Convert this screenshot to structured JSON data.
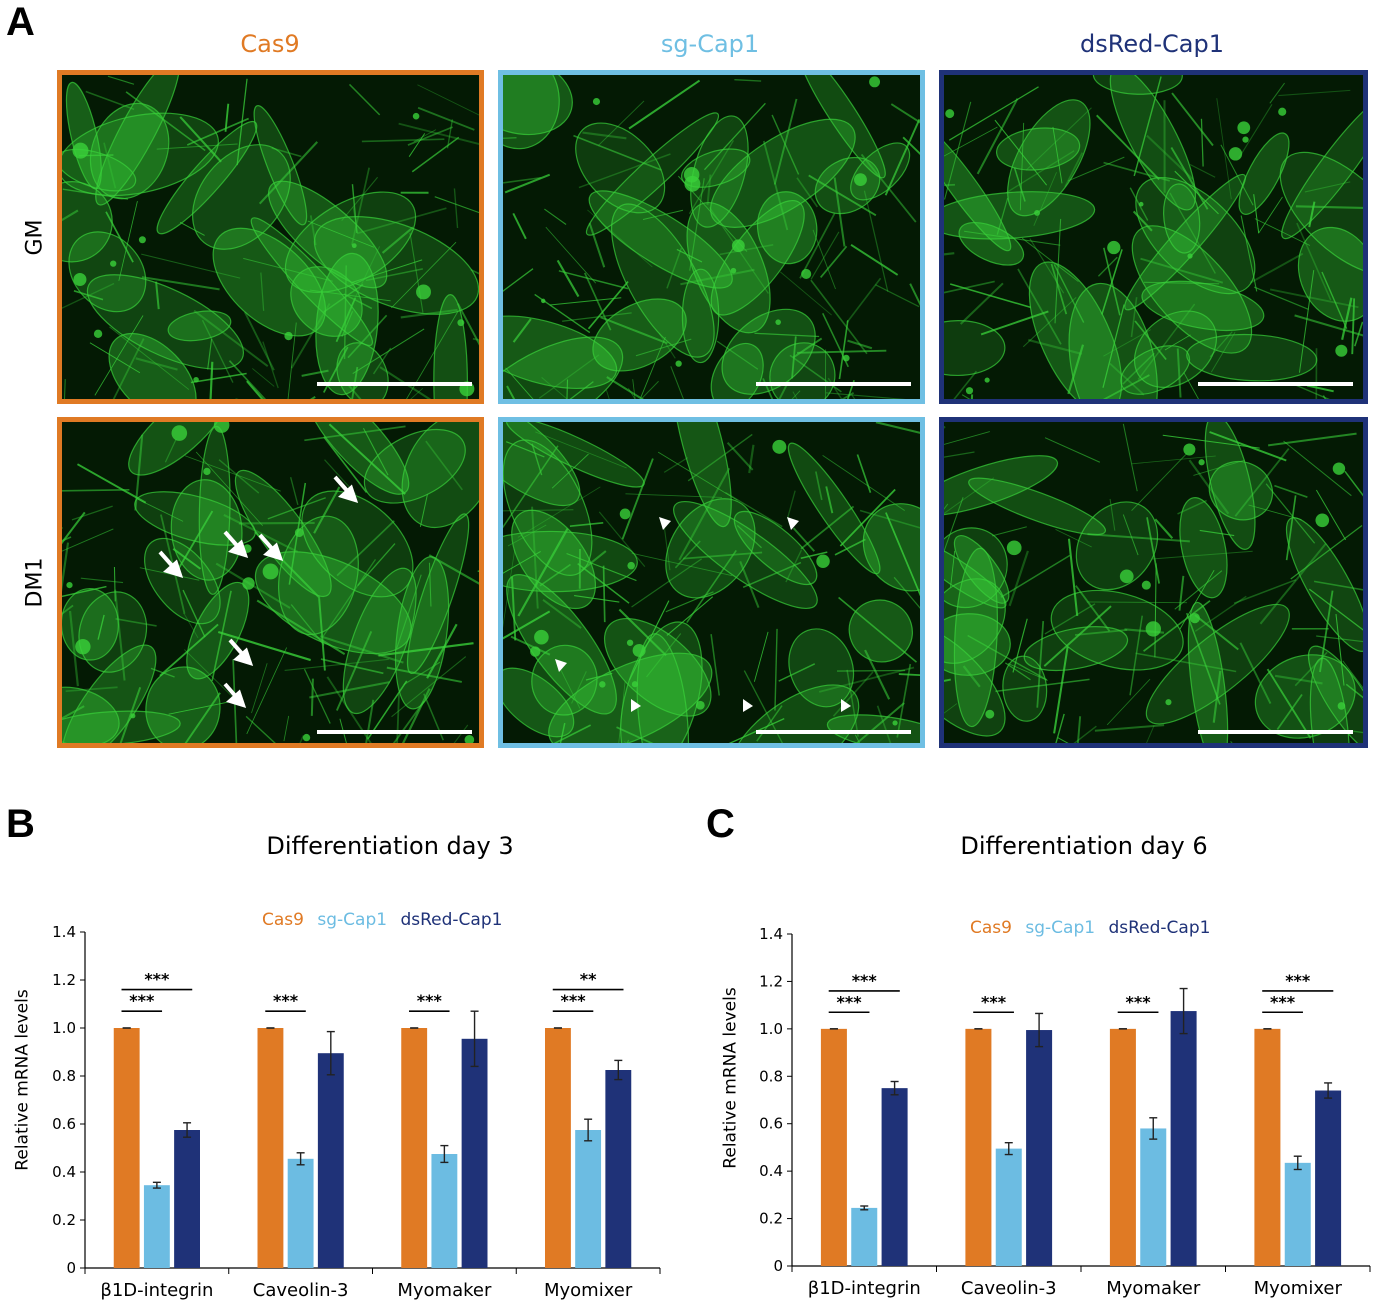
{
  "panels": {
    "a_label": "A",
    "b_label": "B",
    "c_label": "C"
  },
  "microscopy": {
    "columns": [
      {
        "label": "Cas9",
        "color": "#e07a24"
      },
      {
        "label": "sg-Cap1",
        "color": "#6fbfe3"
      },
      {
        "label": "dsRed-Cap1",
        "color": "#1f3278"
      }
    ],
    "rows": [
      "GM",
      "DM1"
    ],
    "fluorescence_color": "#39d13a"
  },
  "colors": {
    "cas9": "#e07a24",
    "sgcap1": "#6cbce2",
    "dsred": "#1f3278"
  },
  "chart_data": [
    {
      "type": "bar",
      "title": "Differentiation  day 3",
      "ylabel": "Relative  mRNA levels",
      "xlabel": "",
      "ylim": [
        0,
        1.4
      ],
      "yticks": [
        "0",
        "0.2",
        "0.4",
        "0.6",
        "0.8",
        "1.0",
        "1.2",
        "1.4"
      ],
      "categories": [
        "β1D-integrin",
        "Caveolin-3",
        "Myomaker",
        "Myomixer"
      ],
      "series": [
        {
          "name": "Cas9",
          "values": [
            1.0,
            1.0,
            1.0,
            1.0
          ],
          "errors": [
            0.0,
            0.0,
            0.0,
            0.0
          ]
        },
        {
          "name": "sg-Cap1",
          "values": [
            0.345,
            0.455,
            0.475,
            0.575
          ],
          "errors": [
            0.012,
            0.025,
            0.035,
            0.045
          ]
        },
        {
          "name": "dsRed-Cap1",
          "values": [
            0.575,
            0.895,
            0.955,
            0.825
          ],
          "errors": [
            0.03,
            0.09,
            0.115,
            0.04
          ]
        }
      ],
      "significance": [
        {
          "category": 0,
          "pair": "Cas9-sg-Cap1",
          "label": "***"
        },
        {
          "category": 0,
          "pair": "Cas9-dsRed-Cap1",
          "label": "***"
        },
        {
          "category": 1,
          "pair": "Cas9-sg-Cap1",
          "label": "***"
        },
        {
          "category": 2,
          "pair": "Cas9-sg-Cap1",
          "label": "***"
        },
        {
          "category": 3,
          "pair": "Cas9-sg-Cap1",
          "label": "***"
        },
        {
          "category": 3,
          "pair": "Cas9-dsRed-Cap1",
          "label": "**"
        }
      ],
      "legend": "top-center",
      "grid": false
    },
    {
      "type": "bar",
      "title": "Differentiation  day 6",
      "ylabel": "Relative  mRNA levels",
      "xlabel": "",
      "ylim": [
        0,
        1.4
      ],
      "yticks": [
        "0",
        "0.2",
        "0.4",
        "0.6",
        "0.8",
        "1.0",
        "1.2",
        "1.4"
      ],
      "categories": [
        "β1D-integrin",
        "Caveolin-3",
        "Myomaker",
        "Myomixer"
      ],
      "series": [
        {
          "name": "Cas9",
          "values": [
            1.0,
            1.0,
            1.0,
            1.0
          ],
          "errors": [
            0.0,
            0.0,
            0.0,
            0.0
          ]
        },
        {
          "name": "sg-Cap1",
          "values": [
            0.245,
            0.495,
            0.58,
            0.435
          ],
          "errors": [
            0.008,
            0.025,
            0.045,
            0.028
          ]
        },
        {
          "name": "dsRed-Cap1",
          "values": [
            0.75,
            0.995,
            1.075,
            0.74
          ],
          "errors": [
            0.028,
            0.07,
            0.095,
            0.032
          ]
        }
      ],
      "significance": [
        {
          "category": 0,
          "pair": "Cas9-sg-Cap1",
          "label": "***"
        },
        {
          "category": 0,
          "pair": "Cas9-dsRed-Cap1",
          "label": "***"
        },
        {
          "category": 1,
          "pair": "Cas9-sg-Cap1",
          "label": "***"
        },
        {
          "category": 2,
          "pair": "Cas9-sg-Cap1",
          "label": "***"
        },
        {
          "category": 3,
          "pair": "Cas9-sg-Cap1",
          "label": "***"
        },
        {
          "category": 3,
          "pair": "Cas9-dsRed-Cap1",
          "label": "***"
        }
      ],
      "legend": "top-center",
      "grid": false
    }
  ]
}
